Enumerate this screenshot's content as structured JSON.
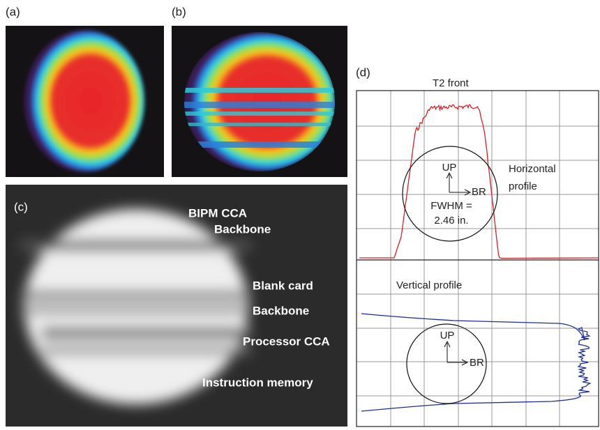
{
  "panel_a": {
    "label": "(a)"
  },
  "panel_b": {
    "label": "(b)"
  },
  "panel_c": {
    "label": "(c)",
    "annotations": [
      "BIPM CCA",
      "Backbone",
      "Blank card",
      "Backbone",
      "Processor CCA",
      "Instruction memory"
    ]
  },
  "panel_d": {
    "label": "(d)",
    "title": "T2 front",
    "top": {
      "profile": [
        "Horizontal",
        "profile"
      ],
      "up": "UP",
      "br": "BR",
      "fwhm": [
        "FWHM =",
        "2.46 in."
      ]
    },
    "bottom": {
      "profile": "Vertical profile",
      "up": "UP",
      "br": "BR"
    }
  }
}
